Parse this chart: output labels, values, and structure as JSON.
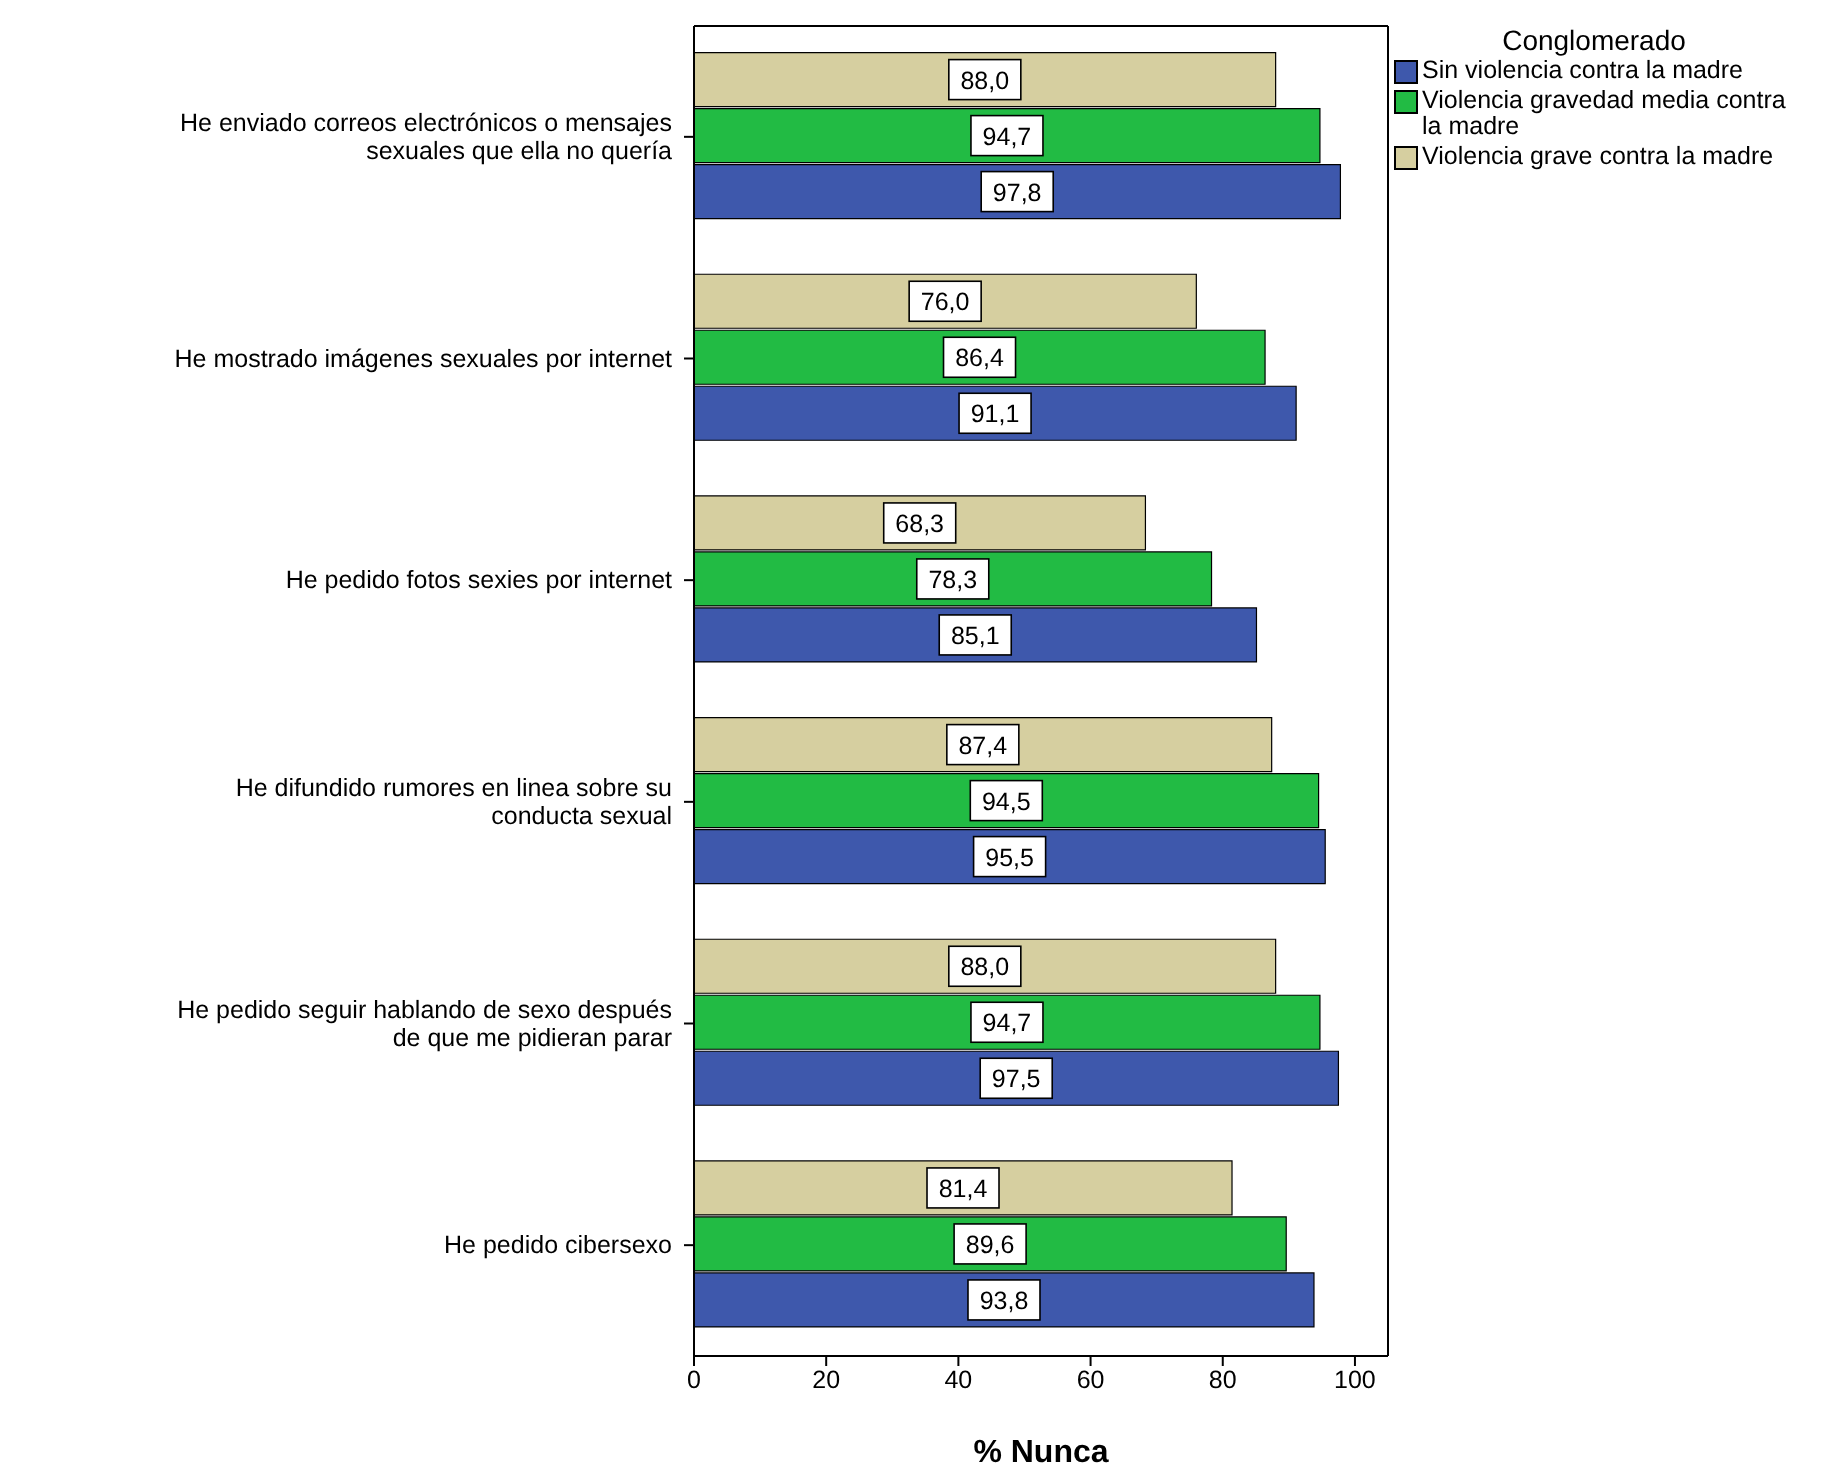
{
  "chart_data": {
    "type": "bar",
    "orientation": "horizontal",
    "xlabel": "% Nunca",
    "legend_title": "Conglomerado",
    "legend": "top right",
    "xlim": [
      0,
      105
    ],
    "xticks": [
      0,
      20,
      40,
      60,
      80,
      100
    ],
    "categories": [
      "He enviado correos electrónicos o mensajes sexuales que ella no quería",
      "He mostrado imágenes sexuales por internet",
      "He pedido fotos sexies por internet",
      "He difundido rumores en linea sobre su conducta sexual",
      "He pedido seguir hablando de sexo después de que me pidieran parar",
      "He pedido cibersexo"
    ],
    "series": [
      {
        "name": "Sin violencia contra la madre",
        "color": "#3e58ac",
        "values": [
          97.8,
          91.1,
          85.1,
          95.5,
          97.5,
          93.8
        ],
        "value_labels": [
          "97,8",
          "91,1",
          "85,1",
          "95,5",
          "97,5",
          "93,8"
        ]
      },
      {
        "name": "Violencia gravedad media contra la madre",
        "color": "#22bb44",
        "values": [
          94.7,
          86.4,
          78.3,
          94.5,
          94.7,
          89.6
        ],
        "value_labels": [
          "94,7",
          "86,4",
          "78,3",
          "94,5",
          "94,7",
          "89,6"
        ]
      },
      {
        "name": "Violencia grave contra la madre",
        "color": "#d6cfa0",
        "values": [
          88.0,
          76.0,
          68.3,
          87.4,
          88.0,
          81.4
        ],
        "value_labels": [
          "88,0",
          "76,0",
          "68,3",
          "87,4",
          "88,0",
          "81,4"
        ]
      }
    ]
  }
}
